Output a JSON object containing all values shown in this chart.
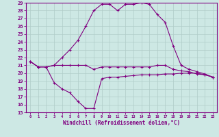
{
  "title": "Windchill (Refroidissement éolien,°C)",
  "background_color": "#cde8e4",
  "grid_color": "#b0ccc8",
  "line_color": "#800080",
  "hours": [
    0,
    1,
    2,
    3,
    4,
    5,
    6,
    7,
    8,
    9,
    10,
    11,
    12,
    13,
    14,
    15,
    16,
    17,
    18,
    19,
    20,
    21,
    22,
    23
  ],
  "temp_actual": [
    21.5,
    20.8,
    20.8,
    21.0,
    21.0,
    21.0,
    21.0,
    21.0,
    20.5,
    20.8,
    20.8,
    20.8,
    20.8,
    20.8,
    20.8,
    20.8,
    21.0,
    21.0,
    20.5,
    20.3,
    20.2,
    19.9,
    19.8,
    19.5
  ],
  "windchill": [
    21.5,
    20.8,
    20.8,
    18.8,
    18.0,
    17.5,
    16.4,
    15.5,
    15.5,
    19.3,
    19.5,
    19.5,
    19.6,
    19.7,
    19.8,
    19.8,
    19.8,
    19.9,
    19.9,
    20.0,
    20.0,
    20.0,
    19.8,
    19.5
  ],
  "temp_high": [
    21.5,
    20.8,
    20.8,
    21.0,
    22.0,
    23.0,
    24.2,
    26.0,
    28.0,
    28.8,
    28.8,
    28.0,
    28.8,
    28.8,
    29.0,
    28.8,
    27.5,
    26.5,
    23.5,
    21.0,
    20.5,
    20.2,
    19.9,
    19.5
  ],
  "ylim": [
    15,
    29
  ],
  "yticks": [
    15,
    16,
    17,
    18,
    19,
    20,
    21,
    22,
    23,
    24,
    25,
    26,
    27,
    28,
    29
  ],
  "xlim": [
    -0.5,
    23.5
  ],
  "xticks": [
    0,
    1,
    2,
    3,
    4,
    5,
    6,
    7,
    8,
    9,
    10,
    11,
    12,
    13,
    14,
    15,
    16,
    17,
    18,
    19,
    20,
    21,
    22,
    23
  ]
}
